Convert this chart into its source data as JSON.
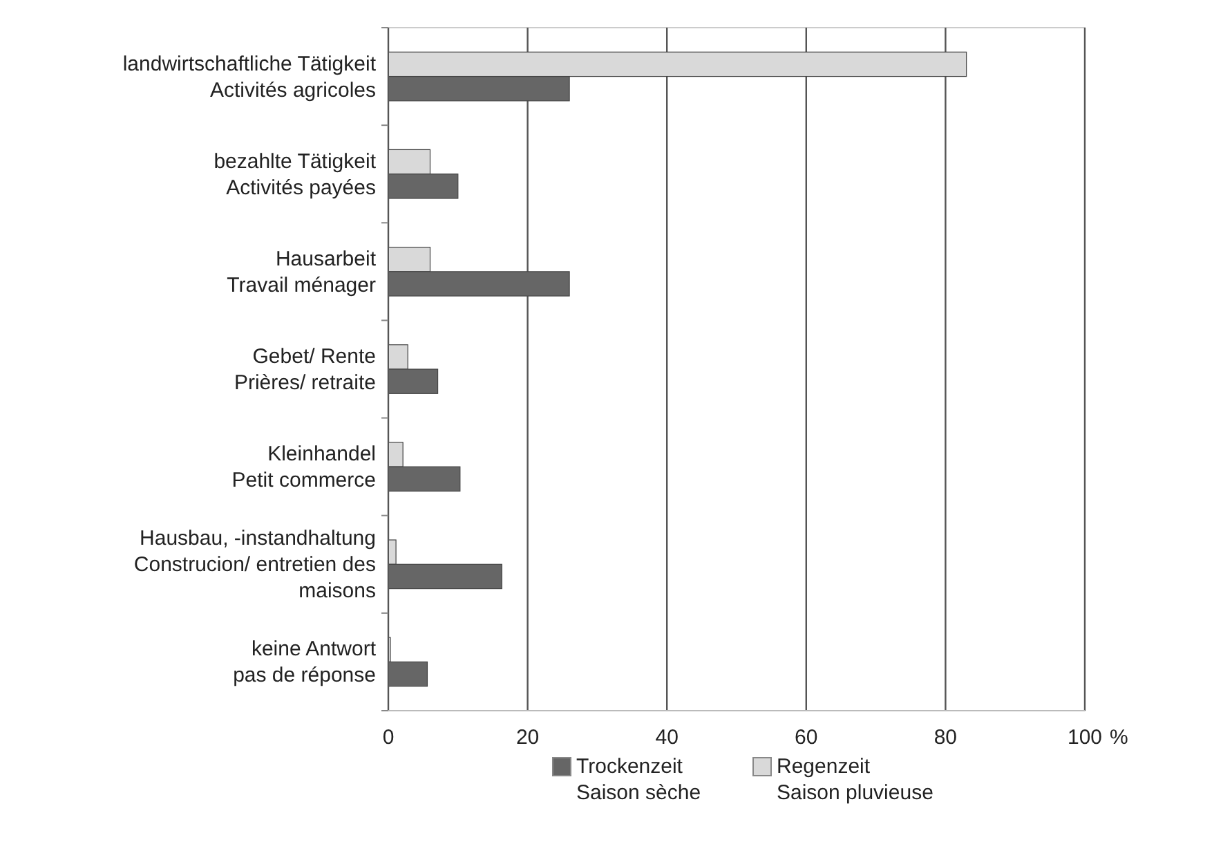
{
  "chart_data": {
    "type": "bar",
    "orientation": "horizontal",
    "xlabel": "%",
    "categories": [
      "landwirtschaftliche Tätigkeit\nActivités agricoles",
      "bezahlte Tätigkeit\nActivités payées",
      "Hausarbeit\nTravail ménager",
      "Gebet/ Rente\nPrières/ retraite",
      "Kleinhandel\nPetit commerce",
      "Hausbau, -instandhaltung\nConstrucion/ entretien des\nmaisons",
      "keine Antwort\npas de réponse"
    ],
    "series": [
      {
        "name": "Trockenzeit\nSaison sèche",
        "color": "#666666",
        "values": [
          26,
          10,
          26,
          7.1,
          10.3,
          16.3,
          5.6
        ]
      },
      {
        "name": "Regenzeit\nSaison pluvieuse",
        "color": "#d9d9d9",
        "values": [
          83,
          6,
          6,
          2.8,
          2.1,
          1.1,
          0.3
        ]
      }
    ],
    "xlim": [
      0,
      100
    ],
    "xticks": [
      0,
      20,
      40,
      60,
      80,
      100
    ],
    "grid": "x",
    "legend": "bottom"
  }
}
